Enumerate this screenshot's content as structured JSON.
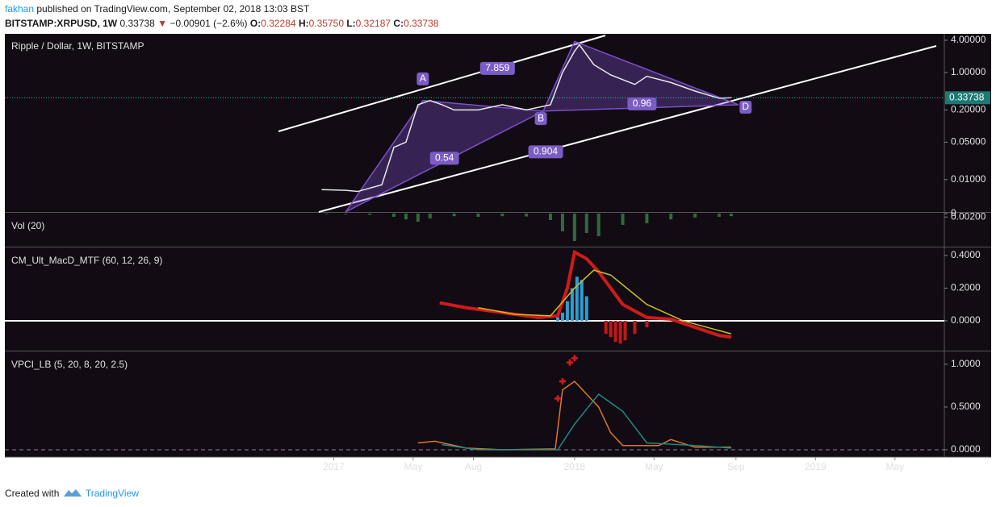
{
  "header": {
    "author": "fakhan",
    "published": "published on TradingView.com, September 02, 2018 13:03 BST",
    "symbol": "BITSTAMP:XRPUSD, 1W",
    "last": "0.33738",
    "arrow": "▼",
    "change": "−0.00901 (−2.6%)",
    "o_label": "O:",
    "o": "0.32284",
    "h_label": "H:",
    "h": "0.35750",
    "l_label": "L:",
    "l": "0.32187",
    "c_label": "C:",
    "c": "0.33738"
  },
  "footer": {
    "created": "Created with",
    "brand": "TradingView"
  },
  "chart_data": [
    {
      "type": "line",
      "title": "Ripple / Dollar, 1W, BITSTAMP",
      "log_scale": true,
      "xlim": [
        2015.635,
        2019.535
      ],
      "ylim": [
        5.27,
        0.00257
      ],
      "yticks": [
        {
          "value": 4,
          "label": "4.00000"
        },
        {
          "value": 1,
          "label": "1.00000"
        },
        {
          "value": 0.2,
          "label": "0.20000"
        },
        {
          "value": 0.05,
          "label": "0.05000"
        },
        {
          "value": 0.01,
          "label": "0.01000"
        },
        {
          "value": 0.002,
          "label": "0.00200"
        }
      ],
      "last_value": 0.33738,
      "series": [
        {
          "name": "XRPUSD",
          "color": "#e8e8e8",
          "x": [
            2016.95,
            2017.05,
            2017.1,
            2017.2,
            2017.25,
            2017.3,
            2017.35,
            2017.4,
            2017.45,
            2017.5,
            2017.6,
            2017.7,
            2017.8,
            2017.9,
            2017.95,
            2018.0,
            2018.02,
            2018.08,
            2018.15,
            2018.25,
            2018.3,
            2018.4,
            2018.5,
            2018.6,
            2018.65
          ],
          "values": [
            0.0065,
            0.0063,
            0.006,
            0.008,
            0.04,
            0.05,
            0.25,
            0.3,
            0.25,
            0.2,
            0.2,
            0.25,
            0.2,
            0.25,
            1.0,
            2.5,
            3.3,
            1.4,
            0.9,
            0.6,
            0.85,
            0.65,
            0.45,
            0.33,
            0.33738
          ]
        }
      ],
      "pattern": {
        "color": "#7b4fc9",
        "x": [
          2017.05,
          2017.37,
          2017.87,
          2018.0,
          2018.68
        ],
        "values": [
          0.0025,
          0.3,
          0.19,
          3.8,
          0.25
        ]
      },
      "annotations": [
        {
          "text": "A",
          "x": 2017.37,
          "y": 0.76
        },
        {
          "text": "B",
          "x": 2017.86,
          "y": 0.138
        },
        {
          "text": "D",
          "x": 2018.71,
          "y": 0.225
        },
        {
          "text": "7.859",
          "x": 2017.68,
          "y": 1.19
        },
        {
          "text": "0.54",
          "x": 2017.46,
          "y": 0.025
        },
        {
          "text": "0.904",
          "x": 2017.88,
          "y": 0.033
        },
        {
          "text": "0.96",
          "x": 2018.28,
          "y": 0.259
        }
      ]
    },
    {
      "type": "bar",
      "title": "Vol (20)",
      "xlim": [
        2015.635,
        2019.535
      ],
      "ylim": [
        0,
        100
      ],
      "yticks": [
        0
      ],
      "series": [
        {
          "name": "Volume",
          "color": "#2f6b3a",
          "x": [
            2016.97,
            2017.05,
            2017.15,
            2017.25,
            2017.3,
            2017.35,
            2017.4,
            2017.5,
            2017.6,
            2017.7,
            2017.8,
            2017.9,
            2017.95,
            2018.0,
            2018.05,
            2018.1,
            2018.2,
            2018.3,
            2018.4,
            2018.5,
            2018.6,
            2018.65
          ],
          "values": [
            2,
            2,
            4,
            10,
            18,
            25,
            15,
            8,
            10,
            8,
            9,
            20,
            55,
            85,
            60,
            70,
            35,
            30,
            18,
            12,
            10,
            8
          ]
        }
      ]
    },
    {
      "type": "line",
      "title": "CM_Ult_MacD_MTF (60, 12, 26, 9)",
      "xlim": [
        2015.635,
        2019.535
      ],
      "ylim": [
        0.444,
        -0.173
      ],
      "yticks": [
        {
          "value": 0.4,
          "label": "0.4000"
        },
        {
          "value": 0.2,
          "label": "0.2000"
        },
        {
          "value": 0,
          "label": "0.0000"
        }
      ],
      "zero_line": true,
      "series": [
        {
          "name": "Histogram",
          "type": "bar",
          "color": "#c01818",
          "x": [
            2017.93,
            2017.95,
            2017.97,
            2017.99,
            2018.01,
            2018.03,
            2018.05,
            2018.13,
            2018.15,
            2018.17,
            2018.19,
            2018.21,
            2018.25,
            2018.3
          ],
          "values": [
            0.03,
            0.05,
            0.12,
            0.2,
            0.27,
            0.25,
            0.15,
            -0.08,
            -0.1,
            -0.13,
            -0.14,
            -0.12,
            -0.08,
            -0.04
          ]
        },
        {
          "name": "MacD",
          "color": "#d01a1a",
          "x": [
            2017.44,
            2017.55,
            2017.7,
            2017.85,
            2017.93,
            2017.97,
            2018.0,
            2018.05,
            2018.1,
            2018.2,
            2018.3,
            2018.4,
            2018.5,
            2018.6,
            2018.65
          ],
          "values": [
            0.11,
            0.08,
            0.05,
            0.02,
            0.03,
            0.2,
            0.42,
            0.38,
            0.3,
            0.1,
            0.02,
            0.01,
            -0.04,
            -0.09,
            -0.1
          ]
        },
        {
          "name": "Signal",
          "color": "#c8c020",
          "x": [
            2017.6,
            2017.75,
            2017.9,
            2018.0,
            2018.08,
            2018.15,
            2018.3,
            2018.45,
            2018.55,
            2018.65
          ],
          "values": [
            0.08,
            0.04,
            0.03,
            0.2,
            0.31,
            0.28,
            0.1,
            0.0,
            -0.04,
            -0.08
          ]
        }
      ]
    },
    {
      "type": "line",
      "title": "VPCI_LB (5, 20, 8, 20, 2.5)",
      "xlim": [
        2015.635,
        2019.535
      ],
      "ylim": [
        1.14,
        -0.066
      ],
      "yticks": [
        {
          "value": 1,
          "label": "1.0000"
        },
        {
          "value": 0.5,
          "label": "0.5000"
        },
        {
          "value": 0,
          "label": "0.0000"
        }
      ],
      "zero_line": true,
      "xticks": [
        {
          "value": 2017,
          "label": "2017"
        },
        {
          "value": 2017.33,
          "label": "May"
        },
        {
          "value": 2017.58,
          "label": "Aug"
        },
        {
          "value": 2018,
          "label": "2018"
        },
        {
          "value": 2018.33,
          "label": "May"
        },
        {
          "value": 2018.67,
          "label": "Sep"
        },
        {
          "value": 2019,
          "label": "2019"
        },
        {
          "value": 2019.33,
          "label": "May"
        }
      ],
      "series": [
        {
          "name": "VPCI",
          "color": "#d9782a",
          "x": [
            2017.35,
            2017.42,
            2017.55,
            2017.7,
            2017.92,
            2017.95,
            2018.0,
            2018.1,
            2018.15,
            2018.2,
            2018.35,
            2018.4,
            2018.5,
            2018.65
          ],
          "values": [
            0.08,
            0.1,
            0.02,
            0.0,
            0.01,
            0.7,
            0.8,
            0.5,
            0.2,
            0.05,
            0.05,
            0.12,
            0.03,
            0.03
          ]
        },
        {
          "name": "Signal",
          "color": "#1f8a80",
          "x": [
            2017.45,
            2017.6,
            2017.93,
            2018.0,
            2018.1,
            2018.2,
            2018.3,
            2018.5,
            2018.65
          ],
          "values": [
            0.06,
            0.0,
            0.0,
            0.3,
            0.65,
            0.45,
            0.08,
            0.05,
            0.02
          ]
        },
        {
          "name": "Signals",
          "type": "scatter",
          "color": "#e01818",
          "x": [
            2017.93,
            2017.95,
            2017.98,
            2018.0
          ],
          "values": [
            0.6,
            0.8,
            1.02,
            1.07
          ]
        }
      ]
    }
  ]
}
